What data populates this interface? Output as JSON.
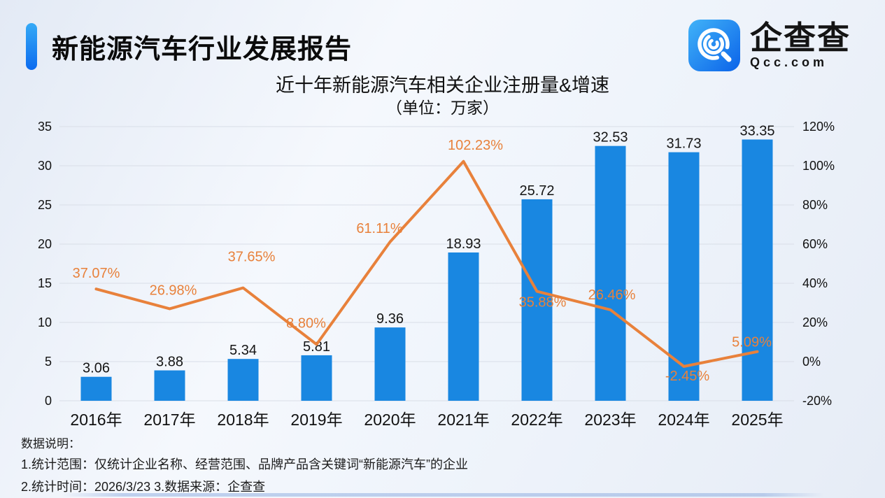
{
  "header": {
    "report_title": "新能源汽车行业发展报告",
    "logo": {
      "icon": "qcc-logo-icon",
      "brand_cn": "企查查",
      "brand_en": "Qcc.com",
      "icon_gradient": [
        "#41B3F8",
        "#0B63E9"
      ]
    }
  },
  "chart_data": {
    "type": "bar+line",
    "title": "近十年新能源汽车相关企业注册量&增速",
    "subtitle": "（单位：万家）",
    "categories": [
      "2016年",
      "2017年",
      "2018年",
      "2019年",
      "2020年",
      "2021年",
      "2022年",
      "2023年",
      "2024年",
      "2025年"
    ],
    "series": [
      {
        "name": "注册量（万家）",
        "type": "bar",
        "axis": "left",
        "color": "#1987E1",
        "values": [
          3.06,
          3.88,
          5.34,
          5.81,
          9.36,
          18.93,
          25.72,
          32.53,
          31.73,
          33.35
        ],
        "labels": [
          "3.06",
          "3.88",
          "5.34",
          "5.81",
          "9.36",
          "18.93",
          "25.72",
          "32.53",
          "31.73",
          "33.35"
        ]
      },
      {
        "name": "增速",
        "type": "line",
        "axis": "right",
        "color": "#E8813B",
        "values": [
          37.07,
          26.98,
          37.65,
          8.8,
          61.11,
          102.23,
          35.88,
          26.46,
          -2.45,
          5.09
        ],
        "labels": [
          "37.07%",
          "26.98%",
          "37.65%",
          "8.80%",
          "61.11%",
          "102.23%",
          "35.88%",
          "26.46%",
          "-2.45%",
          "5.09%"
        ],
        "label_offsets": [
          [
            0,
            -22
          ],
          [
            5,
            -26
          ],
          [
            12,
            -44
          ],
          [
            -15,
            -30
          ],
          [
            -15,
            -19
          ],
          [
            17,
            -23
          ],
          [
            8,
            16
          ],
          [
            2,
            -21
          ],
          [
            5,
            14
          ],
          [
            -8,
            -13
          ]
        ]
      }
    ],
    "left_axis": {
      "min": 0,
      "max": 35,
      "step": 5,
      "ticks": [
        "0",
        "5",
        "10",
        "15",
        "20",
        "25",
        "30",
        "35"
      ]
    },
    "right_axis": {
      "min": -20,
      "max": 120,
      "step": 20,
      "ticks": [
        "-20%",
        "0%",
        "20%",
        "40%",
        "60%",
        "80%",
        "100%",
        "120%"
      ]
    },
    "grid": true,
    "grid_color": "#d9dee7",
    "legend": "none"
  },
  "footer": {
    "notes_title": "数据说明：",
    "note1": "1.统计范围：仅统计企业名称、经营范围、品牌产品含关键词“新能源汽车”的企业",
    "note2": "2.统计时间：2026/3/23  3.数据来源：企查查"
  }
}
